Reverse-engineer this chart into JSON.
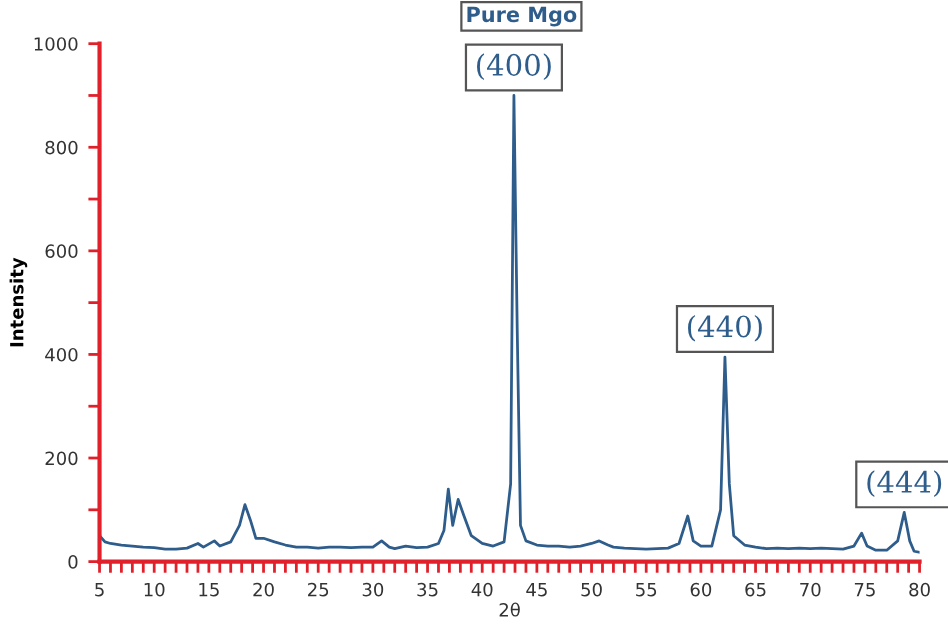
{
  "chart_data": {
    "type": "line",
    "title": "Pure Mgo",
    "xlabel": "2θ",
    "ylabel": "Intensity",
    "annotations": [
      {
        "text": "(400)",
        "x": 42.9,
        "y": 900
      },
      {
        "text": "(440)",
        "x": 62.2,
        "y": 395
      },
      {
        "text": "(444)",
        "x": 78.6,
        "y": 95
      }
    ],
    "series": [
      {
        "color": "#2e5d8c",
        "x": [
          5,
          5.5,
          6,
          7,
          8,
          9,
          10,
          11,
          12,
          13,
          14,
          14.5,
          15.5,
          16,
          17,
          17.8,
          18.3,
          18.8,
          19.3,
          20,
          21,
          22,
          23,
          24,
          25,
          26,
          27,
          28,
          29,
          30,
          30.8,
          31.5,
          32,
          33,
          34,
          35,
          36,
          36.5,
          36.9,
          37.3,
          37.8,
          38.3,
          39,
          40,
          41,
          42,
          42.6,
          42.9,
          43.2,
          43.5,
          44,
          45,
          46,
          47,
          48,
          49,
          50,
          50.7,
          51.5,
          52,
          53,
          54,
          55,
          56,
          57,
          58,
          58.8,
          59.3,
          60,
          61,
          61.8,
          62.2,
          62.6,
          63,
          64,
          65,
          66,
          67,
          68,
          69,
          70,
          71,
          72,
          73,
          74,
          74.7,
          75.2,
          76,
          77,
          78,
          78.6,
          79.1,
          79.5,
          80
        ],
        "values": [
          50,
          38,
          35,
          32,
          30,
          28,
          27,
          24,
          24,
          26,
          35,
          28,
          40,
          30,
          38,
          70,
          110,
          80,
          45,
          45,
          38,
          32,
          28,
          28,
          26,
          28,
          28,
          27,
          28,
          28,
          40,
          28,
          25,
          30,
          27,
          28,
          35,
          60,
          140,
          70,
          120,
          90,
          50,
          35,
          30,
          38,
          150,
          900,
          450,
          70,
          40,
          32,
          30,
          30,
          28,
          30,
          35,
          40,
          32,
          28,
          26,
          25,
          24,
          25,
          26,
          35,
          88,
          40,
          30,
          30,
          100,
          395,
          150,
          50,
          32,
          28,
          25,
          26,
          25,
          26,
          25,
          26,
          25,
          24,
          30,
          55,
          30,
          22,
          22,
          40,
          95,
          40,
          20,
          18
        ]
      }
    ],
    "xlim": [
      5,
      80
    ],
    "ylim": [
      0,
      1000
    ],
    "xticks": [
      5,
      {
        "value": 6,
        "label": null
      },
      {
        "value": 7,
        "label": null
      },
      {
        "value": 8,
        "label": null
      },
      {
        "value": 9,
        "label": null
      },
      10,
      {
        "value": 11,
        "label": null
      },
      {
        "value": 12,
        "label": null
      },
      {
        "value": 13,
        "label": null
      },
      {
        "value": 14,
        "label": null
      },
      15,
      {
        "value": 16,
        "label": null
      },
      {
        "value": 17,
        "label": null
      },
      {
        "value": 18,
        "label": null
      },
      {
        "value": 19,
        "label": null
      },
      20,
      {
        "value": 21,
        "label": null
      },
      {
        "value": 22,
        "label": null
      },
      {
        "value": 23,
        "label": null
      },
      {
        "value": 24,
        "label": null
      },
      25,
      {
        "value": 26,
        "label": null
      },
      {
        "value": 27,
        "label": null
      },
      {
        "value": 28,
        "label": null
      },
      {
        "value": 29,
        "label": null
      },
      30,
      {
        "value": 31,
        "label": null
      },
      {
        "value": 32,
        "label": null
      },
      {
        "value": 33,
        "label": null
      },
      {
        "value": 34,
        "label": null
      },
      35,
      {
        "value": 36,
        "label": null
      },
      {
        "value": 37,
        "label": null
      },
      {
        "value": 38,
        "label": null
      },
      {
        "value": 39,
        "label": null
      },
      40,
      {
        "value": 41,
        "label": null
      },
      {
        "value": 42,
        "label": null
      },
      {
        "value": 43,
        "label": null
      },
      {
        "value": 44,
        "label": null
      },
      45,
      {
        "value": 46,
        "label": null
      },
      {
        "value": 47,
        "label": null
      },
      {
        "value": 48,
        "label": null
      },
      {
        "value": 49,
        "label": null
      },
      50,
      {
        "value": 51,
        "label": null
      },
      {
        "value": 52,
        "label": null
      },
      {
        "value": 53,
        "label": null
      },
      {
        "value": 54,
        "label": null
      },
      55,
      {
        "value": 56,
        "label": null
      },
      {
        "value": 57,
        "label": null
      },
      {
        "value": 58,
        "label": null
      },
      {
        "value": 59,
        "label": null
      },
      60,
      {
        "value": 61,
        "label": null
      },
      {
        "value": 62,
        "label": null
      },
      {
        "value": 63,
        "label": null
      },
      {
        "value": 64,
        "label": null
      },
      65,
      {
        "value": 66,
        "label": null
      },
      {
        "value": 67,
        "label": null
      },
      {
        "value": 68,
        "label": null
      },
      {
        "value": 69,
        "label": null
      },
      70,
      {
        "value": 71,
        "label": null
      },
      {
        "value": 72,
        "label": null
      },
      {
        "value": 73,
        "label": null
      },
      {
        "value": 74,
        "label": null
      },
      75,
      {
        "value": 76,
        "label": null
      },
      {
        "value": 77,
        "label": null
      },
      {
        "value": 78,
        "label": null
      },
      {
        "value": 79,
        "label": null
      },
      80
    ],
    "yticks": [
      0,
      {
        "value": 100,
        "label": null
      },
      200,
      {
        "value": 300,
        "label": null
      },
      400,
      {
        "value": 500,
        "label": null
      },
      600,
      {
        "value": 700,
        "label": null
      },
      800,
      {
        "value": 900,
        "label": null
      },
      1000
    ],
    "grid": false,
    "legend": false,
    "marker": "none",
    "line_style": "solid"
  }
}
